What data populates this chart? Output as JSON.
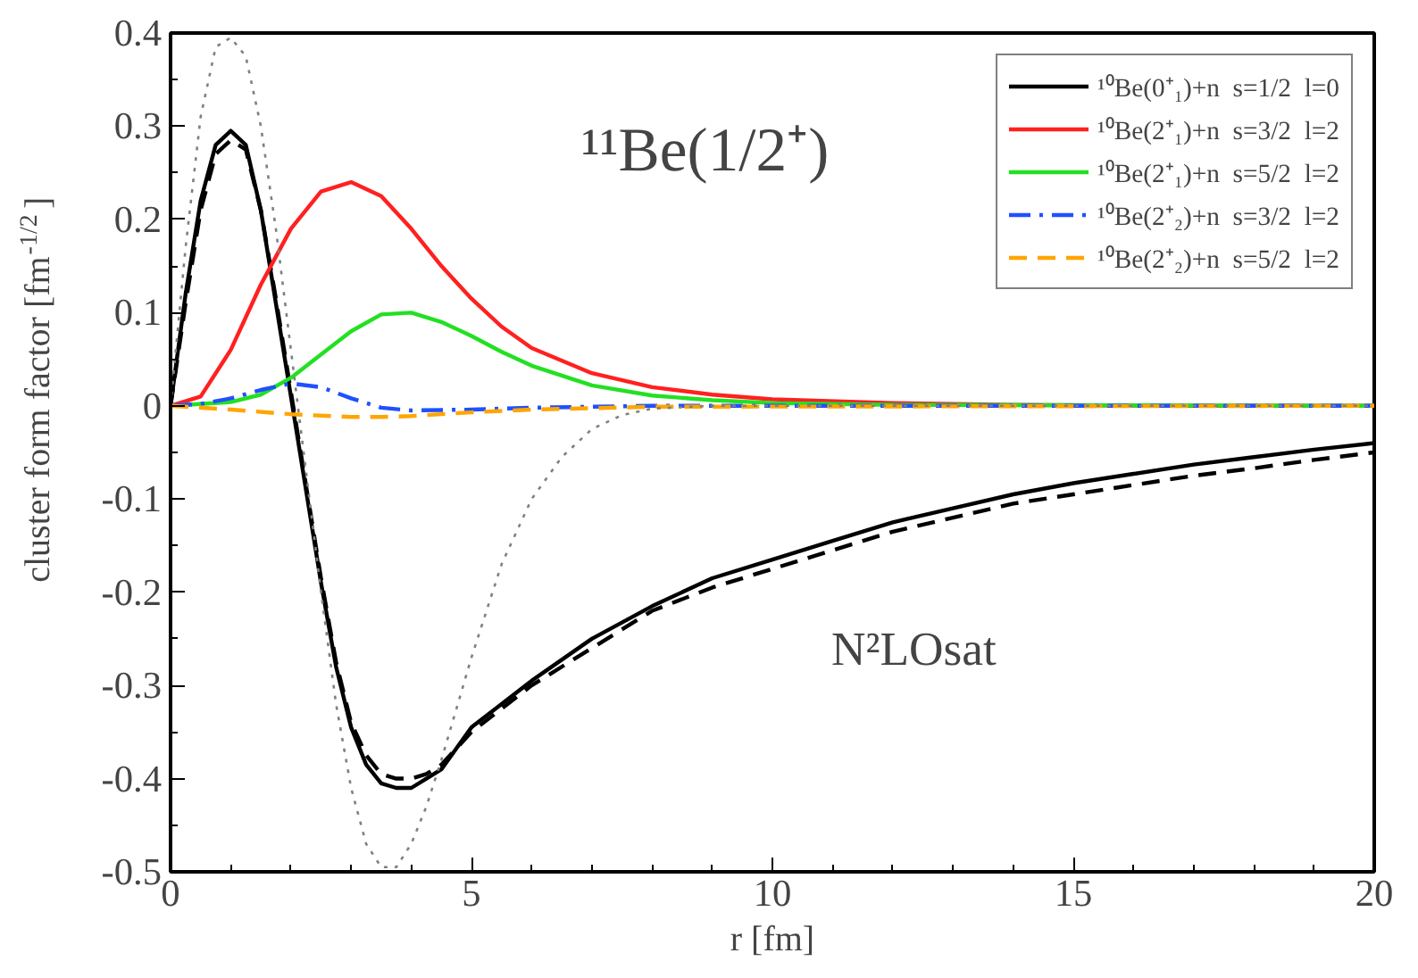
{
  "chart_data": {
    "type": "line",
    "xlabel": "r [fm]",
    "ylabel": "cluster form factor [fm$^{-1/2}$]",
    "annotations": [
      "¹¹Be(1/2⁺)",
      "N²LOsat"
    ],
    "xlim": [
      0,
      20
    ],
    "ylim": [
      -0.5,
      0.4
    ],
    "xticks": [
      0,
      5,
      10,
      15,
      20
    ],
    "yticks": [
      -0.5,
      -0.4,
      -0.3,
      -0.2,
      -0.1,
      0,
      0.1,
      0.2,
      0.3,
      0.4
    ],
    "grid": false,
    "legend": "top right",
    "marker": "none",
    "series": [
      {
        "name": "¹⁰Be(0⁺₁)+n  s=1/2  l=0",
        "color": "#000000",
        "line_style": "solid",
        "x": [
          0,
          0.25,
          0.5,
          0.75,
          1.0,
          1.25,
          1.5,
          1.75,
          2.0,
          2.25,
          2.5,
          2.75,
          3.0,
          3.25,
          3.5,
          3.75,
          4.0,
          4.25,
          4.5,
          5,
          5.5,
          6,
          7,
          8,
          9,
          10,
          11,
          12,
          13,
          14,
          15,
          16,
          17,
          18,
          19,
          20
        ],
        "values": [
          0,
          0.12,
          0.22,
          0.28,
          0.295,
          0.28,
          0.21,
          0.11,
          0.01,
          -0.09,
          -0.19,
          -0.28,
          -0.345,
          -0.385,
          -0.405,
          -0.41,
          -0.41,
          -0.4,
          -0.39,
          -0.345,
          -0.32,
          -0.295,
          -0.25,
          -0.215,
          -0.185,
          -0.165,
          -0.145,
          -0.125,
          -0.11,
          -0.095,
          -0.083,
          -0.073,
          -0.063,
          -0.055,
          -0.047,
          -0.04
        ]
      },
      {
        "color": "#000000",
        "line_style": "dashed",
        "x": [
          0,
          0.25,
          0.5,
          0.75,
          1.0,
          1.25,
          1.5,
          1.75,
          2.0,
          2.25,
          2.5,
          2.75,
          3.0,
          3.25,
          3.5,
          3.75,
          4.0,
          4.25,
          4.5,
          5,
          5.5,
          6,
          7,
          8,
          9,
          10,
          11,
          12,
          13,
          14,
          15,
          16,
          17,
          18,
          19,
          20
        ],
        "values": [
          0,
          0.11,
          0.21,
          0.27,
          0.285,
          0.275,
          0.21,
          0.115,
          0.015,
          -0.085,
          -0.185,
          -0.275,
          -0.34,
          -0.375,
          -0.395,
          -0.4,
          -0.4,
          -0.395,
          -0.385,
          -0.35,
          -0.325,
          -0.3,
          -0.26,
          -0.22,
          -0.195,
          -0.175,
          -0.155,
          -0.135,
          -0.12,
          -0.105,
          -0.095,
          -0.085,
          -0.075,
          -0.067,
          -0.058,
          -0.05
        ]
      },
      {
        "name": "¹⁰Be(2⁺₁)+n  s=3/2  l=2",
        "color": "#ff2020",
        "line_style": "solid",
        "x": [
          0,
          0.5,
          1,
          1.5,
          2,
          2.5,
          3,
          3.5,
          4,
          4.5,
          5,
          5.5,
          6,
          7,
          8,
          9,
          10,
          12,
          14,
          17,
          20
        ],
        "values": [
          0,
          0.01,
          0.06,
          0.13,
          0.19,
          0.23,
          0.24,
          0.225,
          0.19,
          0.15,
          0.115,
          0.085,
          0.062,
          0.035,
          0.02,
          0.012,
          0.007,
          0.003,
          0.001,
          0,
          0
        ]
      },
      {
        "name": "¹⁰Be(2⁺₁)+n  s=5/2  l=2",
        "color": "#22e022",
        "line_style": "solid",
        "x": [
          0,
          1,
          1.5,
          2,
          2.5,
          3,
          3.5,
          4,
          4.5,
          5,
          5.5,
          6,
          7,
          8,
          9,
          10,
          12,
          20
        ],
        "values": [
          0,
          0.004,
          0.012,
          0.03,
          0.055,
          0.08,
          0.098,
          0.1,
          0.09,
          0.075,
          0.058,
          0.043,
          0.022,
          0.011,
          0.006,
          0.003,
          0.001,
          0
        ]
      },
      {
        "name": "¹⁰Be(2⁺₂)+n  s=3/2  l=2",
        "color": "#2050ff",
        "line_style": "dashdot",
        "x": [
          0,
          0.5,
          1,
          1.5,
          2,
          2.5,
          3,
          3.5,
          4,
          5,
          6,
          8,
          20
        ],
        "values": [
          0,
          0.002,
          0.008,
          0.017,
          0.024,
          0.02,
          0.008,
          -0.002,
          -0.005,
          -0.004,
          -0.002,
          0,
          0
        ]
      },
      {
        "name": "¹⁰Be(2⁺₂)+n  s=5/2  l=2",
        "color": "#ffa500",
        "line_style": "dashed",
        "x": [
          0,
          1,
          2,
          3,
          3.5,
          4,
          5,
          6,
          8,
          20
        ],
        "values": [
          0,
          -0.004,
          -0.009,
          -0.012,
          -0.012,
          -0.011,
          -0.007,
          -0.004,
          -0.001,
          0
        ]
      },
      {
        "color": "#808080",
        "line_style": "dotted",
        "x": [
          0,
          0.25,
          0.5,
          0.75,
          1.0,
          1.25,
          1.5,
          1.75,
          2.0,
          2.25,
          2.5,
          2.75,
          3.0,
          3.25,
          3.5,
          3.75,
          4.0,
          4.25,
          4.5,
          5,
          5.5,
          6,
          6.5,
          7,
          7.5,
          8,
          9,
          10,
          12,
          15,
          20
        ],
        "values": [
          0,
          0.17,
          0.31,
          0.385,
          0.395,
          0.375,
          0.3,
          0.19,
          0.06,
          -0.07,
          -0.2,
          -0.32,
          -0.41,
          -0.47,
          -0.495,
          -0.495,
          -0.47,
          -0.43,
          -0.38,
          -0.27,
          -0.17,
          -0.1,
          -0.055,
          -0.025,
          -0.01,
          -0.003,
          0,
          0,
          0,
          0,
          0
        ]
      }
    ]
  }
}
